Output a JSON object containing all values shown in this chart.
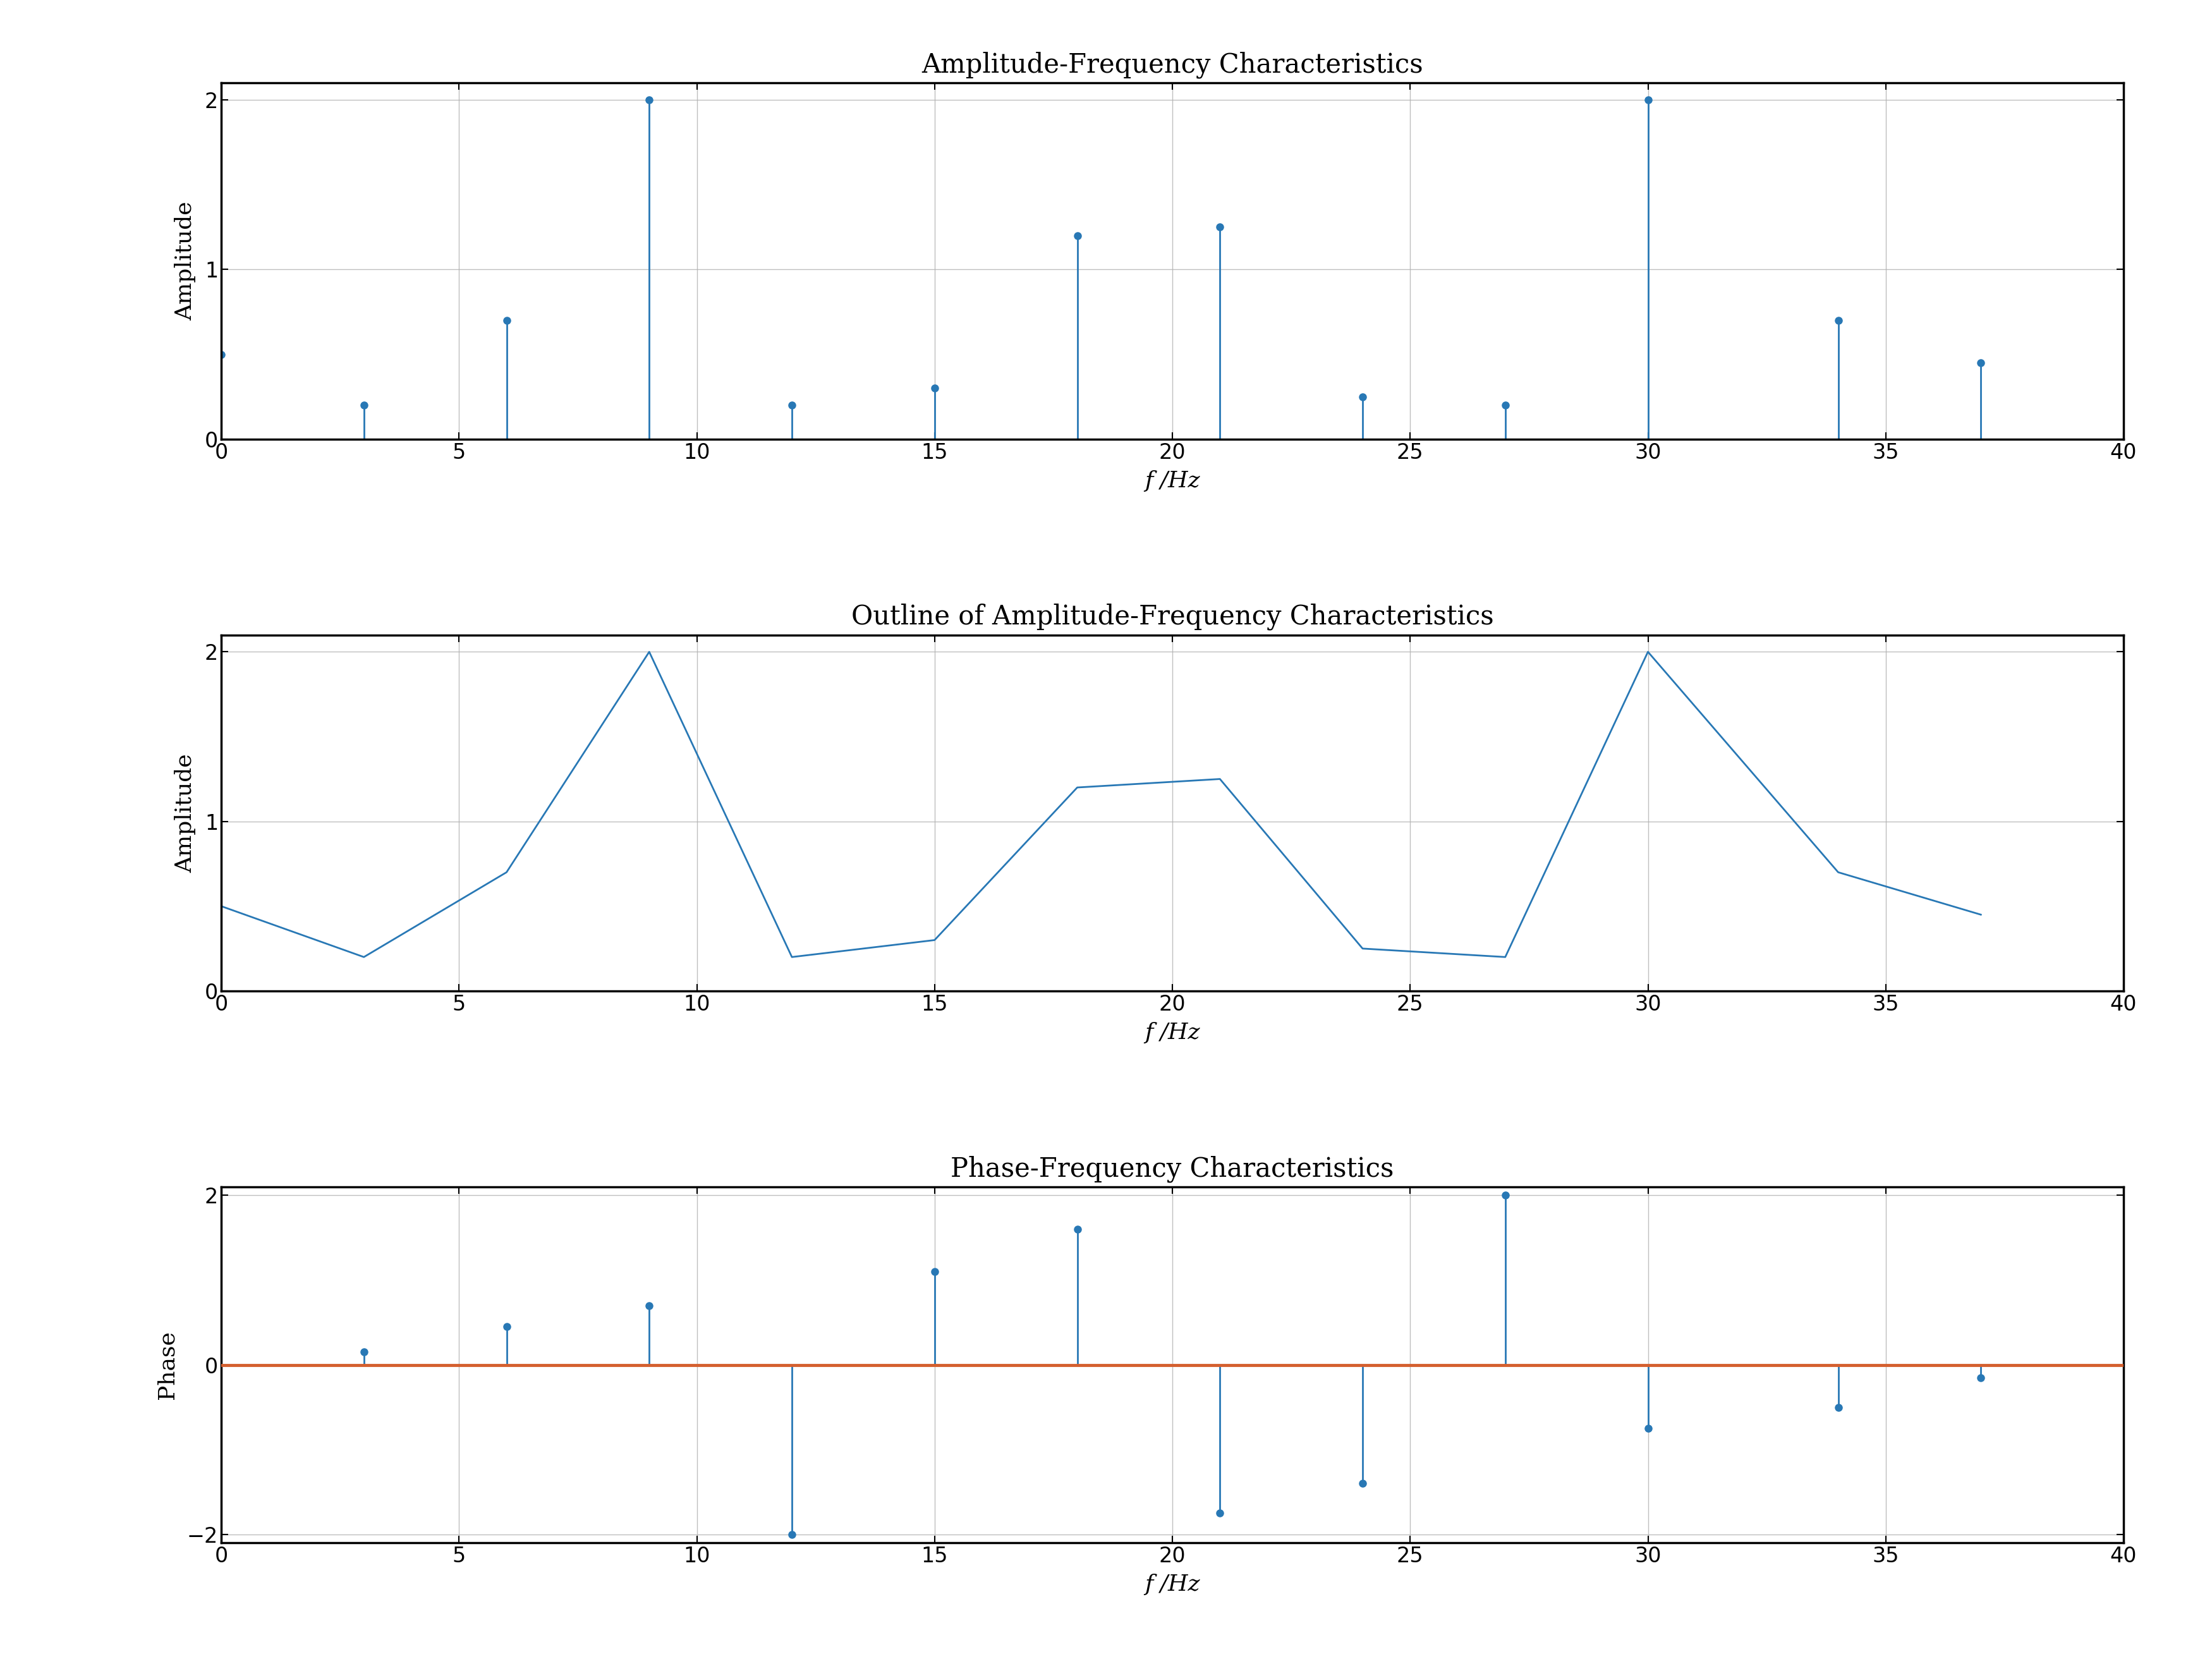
{
  "title1": "Amplitude-Frequency Characteristics",
  "title2": "Outline of Amplitude-Frequency Characteristics",
  "title3": "Phase-Frequency Characteristics",
  "xlabel": "f /Hz",
  "ylabel1": "Amplitude",
  "ylabel2": "Amplitude",
  "ylabel3": "Phase",
  "xlim": [
    0,
    40
  ],
  "ylim1": [
    0,
    2.1
  ],
  "ylim2": [
    0,
    2.1
  ],
  "ylim3": [
    -2.1,
    2.1
  ],
  "xticks": [
    0,
    5,
    10,
    15,
    20,
    25,
    30,
    35,
    40
  ],
  "yticks1": [
    0,
    1,
    2
  ],
  "yticks2": [
    0,
    1,
    2
  ],
  "yticks3": [
    -2,
    0,
    2
  ],
  "amp_freq_x": [
    0,
    3,
    6,
    9,
    12,
    15,
    18,
    21,
    24,
    27,
    30,
    34,
    37
  ],
  "amp_freq_y": [
    0.5,
    0.2,
    0.7,
    2.0,
    0.2,
    0.3,
    1.2,
    1.25,
    0.25,
    0.2,
    2.0,
    0.7,
    0.45
  ],
  "outline_x": [
    0,
    3,
    6,
    9,
    12,
    15,
    18,
    21,
    24,
    27,
    30,
    34,
    37
  ],
  "outline_y": [
    0.5,
    0.2,
    0.7,
    2.0,
    0.2,
    0.3,
    1.2,
    1.25,
    0.25,
    0.2,
    2.0,
    0.7,
    0.45
  ],
  "phase_x": [
    3,
    6,
    9,
    12,
    15,
    18,
    21,
    24,
    27,
    30,
    34,
    37
  ],
  "phase_y": [
    0.15,
    0.45,
    0.7,
    -2.0,
    1.1,
    1.6,
    -1.75,
    -1.4,
    2.0,
    -0.75,
    -0.5,
    -0.15
  ],
  "stem_color": "#2878b5",
  "line_color": "#2878b5",
  "hline_color": "#d45f2e",
  "background_color": "#ffffff",
  "grid_color": "#b0b0b0",
  "title_fontsize": 30,
  "label_fontsize": 26,
  "tick_fontsize": 24,
  "spine_linewidth": 2.5
}
